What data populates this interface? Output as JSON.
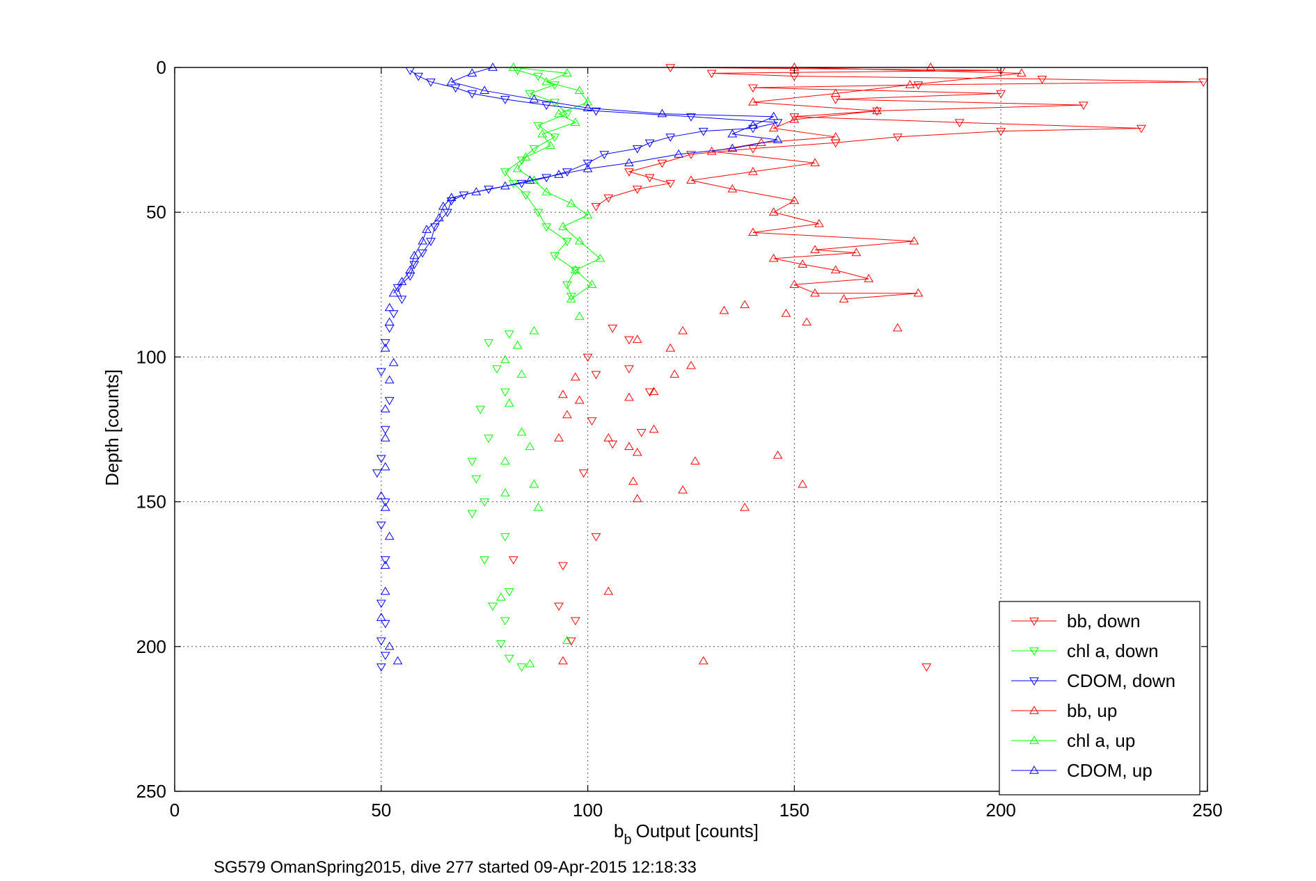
{
  "chart_data": {
    "type": "scatter",
    "title": "",
    "xlabel": "Output [counts]",
    "xlabel_base": "b",
    "xlabel_sub": "b",
    "ylabel": "Depth [counts]",
    "caption": "SG579 OmanSpring2015, dive 277 started 09-Apr-2015 12:18:33",
    "xlim": [
      0,
      250
    ],
    "ylim": [
      0,
      250
    ],
    "y_reversed": true,
    "grid": true,
    "x_ticks": [
      0,
      50,
      100,
      150,
      200,
      250
    ],
    "y_ticks": [
      0,
      50,
      100,
      150,
      200,
      250
    ],
    "legend_position": "bottom-right",
    "colors": {
      "bb": "#ff0000",
      "chl": "#00ff00",
      "cdom": "#0000ff"
    },
    "series": [
      {
        "name": "bb, down",
        "color": "#ff0000",
        "marker": "triangle-down",
        "points": [
          [
            120,
            0
          ],
          [
            200,
            1
          ],
          [
            130,
            2
          ],
          [
            150,
            3
          ],
          [
            210,
            4
          ],
          [
            249,
            5
          ],
          [
            180,
            6
          ],
          [
            140,
            7
          ],
          [
            200,
            9
          ],
          [
            160,
            11
          ],
          [
            220,
            13
          ],
          [
            170,
            15
          ],
          [
            150,
            17
          ],
          [
            190,
            19
          ],
          [
            234,
            21
          ],
          [
            200,
            22
          ],
          [
            175,
            24
          ],
          [
            160,
            26
          ],
          [
            140,
            28
          ],
          [
            125,
            30
          ],
          [
            118,
            33
          ],
          [
            110,
            36
          ],
          [
            115,
            38
          ],
          [
            120,
            40
          ],
          [
            112,
            42
          ],
          [
            105,
            45
          ],
          [
            102,
            48
          ],
          [
            106,
            90
          ],
          [
            110,
            94
          ],
          [
            100,
            100
          ],
          [
            110,
            104
          ],
          [
            102,
            106
          ],
          [
            115,
            112
          ],
          [
            101,
            122
          ],
          [
            113,
            126
          ],
          [
            106,
            130
          ],
          [
            99,
            140
          ],
          [
            102,
            162
          ],
          [
            94,
            172
          ],
          [
            93,
            186
          ],
          [
            97,
            191
          ],
          [
            96,
            198
          ],
          [
            82,
            170
          ],
          [
            182,
            207
          ]
        ]
      },
      {
        "name": "chl a, down",
        "color": "#00ff00",
        "marker": "triangle-down",
        "points": [
          [
            83,
            1
          ],
          [
            88,
            3
          ],
          [
            92,
            6
          ],
          [
            86,
            9
          ],
          [
            92,
            12
          ],
          [
            95,
            16
          ],
          [
            88,
            20
          ],
          [
            92,
            24
          ],
          [
            87,
            28
          ],
          [
            84,
            32
          ],
          [
            80,
            36
          ],
          [
            82,
            40
          ],
          [
            85,
            44
          ],
          [
            88,
            50
          ],
          [
            90,
            55
          ],
          [
            95,
            60
          ],
          [
            92,
            65
          ],
          [
            97,
            70
          ],
          [
            95,
            75
          ],
          [
            96,
            79
          ],
          [
            81,
            92
          ],
          [
            76,
            95
          ],
          [
            78,
            104
          ],
          [
            80,
            112
          ],
          [
            74,
            118
          ],
          [
            76,
            128
          ],
          [
            72,
            136
          ],
          [
            73,
            142
          ],
          [
            75,
            150
          ],
          [
            72,
            154
          ],
          [
            80,
            162
          ],
          [
            75,
            170
          ],
          [
            81,
            181
          ],
          [
            77,
            186
          ],
          [
            80,
            191
          ],
          [
            79,
            199
          ],
          [
            81,
            204
          ],
          [
            84,
            207
          ]
        ]
      },
      {
        "name": "CDOM, down",
        "color": "#0000ff",
        "marker": "triangle-down",
        "points": [
          [
            57,
            1
          ],
          [
            59,
            3
          ],
          [
            62,
            5
          ],
          [
            68,
            7
          ],
          [
            72,
            9
          ],
          [
            80,
            11
          ],
          [
            90,
            13
          ],
          [
            102,
            15
          ],
          [
            125,
            17
          ],
          [
            146,
            19
          ],
          [
            140,
            21
          ],
          [
            128,
            22
          ],
          [
            120,
            24
          ],
          [
            115,
            26
          ],
          [
            112,
            28
          ],
          [
            104,
            30
          ],
          [
            100,
            33
          ],
          [
            95,
            36
          ],
          [
            90,
            38
          ],
          [
            84,
            40
          ],
          [
            76,
            42
          ],
          [
            70,
            44
          ],
          [
            67,
            46
          ],
          [
            66,
            50
          ],
          [
            63,
            55
          ],
          [
            62,
            60
          ],
          [
            60,
            64
          ],
          [
            58,
            68
          ],
          [
            57,
            72
          ],
          [
            54,
            76
          ],
          [
            55,
            80
          ],
          [
            53,
            85
          ],
          [
            52,
            90
          ],
          [
            51,
            95
          ],
          [
            50,
            105
          ],
          [
            52,
            115
          ],
          [
            51,
            125
          ],
          [
            50,
            135
          ],
          [
            49,
            140
          ],
          [
            51,
            150
          ],
          [
            50,
            158
          ],
          [
            51,
            170
          ],
          [
            50,
            185
          ],
          [
            51,
            192
          ],
          [
            50,
            198
          ],
          [
            51,
            203
          ],
          [
            50,
            207
          ]
        ]
      },
      {
        "name": "bb, up",
        "color": "#ff0000",
        "marker": "triangle-up",
        "points": [
          [
            183,
            0
          ],
          [
            150,
            0
          ],
          [
            205,
            2
          ],
          [
            178,
            6
          ],
          [
            160,
            9
          ],
          [
            140,
            12
          ],
          [
            170,
            15
          ],
          [
            150,
            18
          ],
          [
            145,
            21
          ],
          [
            160,
            24
          ],
          [
            142,
            26
          ],
          [
            130,
            29
          ],
          [
            155,
            33
          ],
          [
            140,
            36
          ],
          [
            125,
            39
          ],
          [
            135,
            42
          ],
          [
            150,
            46
          ],
          [
            145,
            50
          ],
          [
            156,
            54
          ],
          [
            140,
            57
          ],
          [
            179,
            60
          ],
          [
            155,
            63
          ],
          [
            165,
            64
          ],
          [
            145,
            66
          ],
          [
            152,
            68
          ],
          [
            160,
            70
          ],
          [
            168,
            73
          ],
          [
            150,
            75
          ],
          [
            155,
            78
          ],
          [
            180,
            78
          ],
          [
            162,
            80
          ],
          [
            138,
            82
          ],
          [
            133,
            84
          ],
          [
            148,
            85
          ],
          [
            153,
            88
          ],
          [
            175,
            90
          ],
          [
            112,
            94
          ],
          [
            123,
            91
          ],
          [
            120,
            97
          ],
          [
            125,
            103
          ],
          [
            121,
            106
          ],
          [
            116,
            112
          ],
          [
            110,
            114
          ],
          [
            116,
            125
          ],
          [
            105,
            128
          ],
          [
            110,
            131
          ],
          [
            112,
            133
          ],
          [
            126,
            136
          ],
          [
            146,
            134
          ],
          [
            111,
            143
          ],
          [
            123,
            146
          ],
          [
            112,
            149
          ],
          [
            152,
            144
          ],
          [
            98,
            115
          ],
          [
            95,
            120
          ],
          [
            93,
            128
          ],
          [
            97,
            107
          ],
          [
            94,
            113
          ],
          [
            138,
            152
          ],
          [
            105,
            181
          ],
          [
            128,
            205
          ],
          [
            94,
            205
          ]
        ]
      },
      {
        "name": "chl a, up",
        "color": "#00ff00",
        "marker": "triangle-up",
        "points": [
          [
            82,
            0
          ],
          [
            95,
            2
          ],
          [
            90,
            5
          ],
          [
            98,
            8
          ],
          [
            100,
            12
          ],
          [
            93,
            16
          ],
          [
            97,
            19
          ],
          [
            89,
            23
          ],
          [
            91,
            27
          ],
          [
            85,
            31
          ],
          [
            83,
            35
          ],
          [
            87,
            39
          ],
          [
            90,
            43
          ],
          [
            96,
            47
          ],
          [
            100,
            51
          ],
          [
            94,
            55
          ],
          [
            98,
            60
          ],
          [
            103,
            66
          ],
          [
            97,
            70
          ],
          [
            101,
            75
          ],
          [
            96,
            80
          ],
          [
            98,
            86
          ],
          [
            87,
            91
          ],
          [
            83,
            96
          ],
          [
            80,
            101
          ],
          [
            84,
            106
          ],
          [
            81,
            116
          ],
          [
            84,
            126
          ],
          [
            86,
            131
          ],
          [
            80,
            136
          ],
          [
            87,
            144
          ],
          [
            80,
            147
          ],
          [
            88,
            152
          ],
          [
            79,
            183
          ],
          [
            86,
            206
          ],
          [
            95,
            198
          ]
        ]
      },
      {
        "name": "CDOM, up",
        "color": "#0000ff",
        "marker": "triangle-up",
        "points": [
          [
            77,
            0
          ],
          [
            72,
            2
          ],
          [
            67,
            5
          ],
          [
            75,
            8
          ],
          [
            87,
            11
          ],
          [
            100,
            14
          ],
          [
            118,
            16
          ],
          [
            145,
            17
          ],
          [
            140,
            20
          ],
          [
            135,
            23
          ],
          [
            146,
            25
          ],
          [
            135,
            28
          ],
          [
            122,
            30
          ],
          [
            110,
            33
          ],
          [
            100,
            35
          ],
          [
            93,
            37
          ],
          [
            86,
            39
          ],
          [
            80,
            41
          ],
          [
            73,
            43
          ],
          [
            67,
            45
          ],
          [
            65,
            48
          ],
          [
            64,
            52
          ],
          [
            61,
            56
          ],
          [
            60,
            60
          ],
          [
            58,
            65
          ],
          [
            57,
            70
          ],
          [
            55,
            74
          ],
          [
            53,
            78
          ],
          [
            52,
            83
          ],
          [
            52,
            88
          ],
          [
            51,
            97
          ],
          [
            53,
            102
          ],
          [
            52,
            108
          ],
          [
            51,
            118
          ],
          [
            51,
            128
          ],
          [
            51,
            138
          ],
          [
            50,
            148
          ],
          [
            51,
            152
          ],
          [
            52,
            162
          ],
          [
            51,
            172
          ],
          [
            51,
            181
          ],
          [
            50,
            190
          ],
          [
            52,
            200
          ],
          [
            54,
            205
          ]
        ]
      }
    ]
  }
}
